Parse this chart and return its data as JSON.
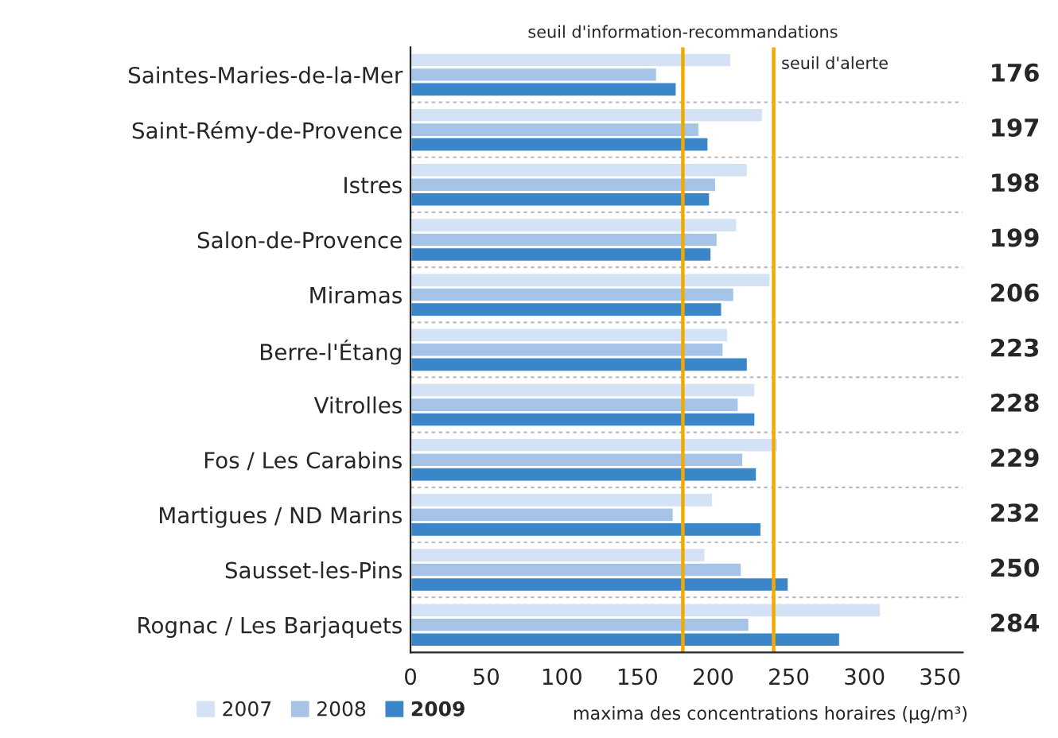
{
  "chart_data": {
    "type": "bar",
    "orientation": "horizontal",
    "categories": [
      "Saintes-Maries-de-la-Mer",
      "Saint-Rémy-de-Provence",
      "Istres",
      "Salon-de-Provence",
      "Miramas",
      "Berre-l'Étang",
      "Vitrolles",
      "Fos / Les Carabins",
      "Martigues / ND Marins",
      "Sausset-les-Pins",
      "Rognac / Les Barjaquets"
    ],
    "series": [
      {
        "name": "2007",
        "color": "#d3e2f4",
        "values": [
          212,
          233,
          223,
          216,
          238,
          210,
          228,
          243,
          200,
          195,
          311
        ]
      },
      {
        "name": "2008",
        "color": "#a6c4e8",
        "values": [
          163,
          191,
          202,
          203,
          214,
          207,
          217,
          220,
          174,
          219,
          224
        ]
      },
      {
        "name": "2009",
        "color": "#3a86c8",
        "values": [
          176,
          197,
          198,
          199,
          206,
          223,
          228,
          229,
          232,
          250,
          284
        ],
        "value_labels": [
          "176",
          "197",
          "198",
          "199",
          "206",
          "223",
          "228",
          "229",
          "232",
          "250",
          "284"
        ]
      }
    ],
    "xlabel": "maxima des concentrations horaires (µg/m³)",
    "xlim": [
      0,
      365
    ],
    "xticks": [
      0,
      50,
      100,
      150,
      200,
      250,
      300,
      350
    ],
    "ref_lines": [
      {
        "axis": "x",
        "value": 180,
        "label": "seuil d'information-recommandations",
        "color": "#f2a900"
      },
      {
        "axis": "x",
        "value": 240,
        "label": "seuil d'alerte",
        "color": "#f2a900"
      }
    ],
    "legend": "bottom left",
    "grid": false
  }
}
